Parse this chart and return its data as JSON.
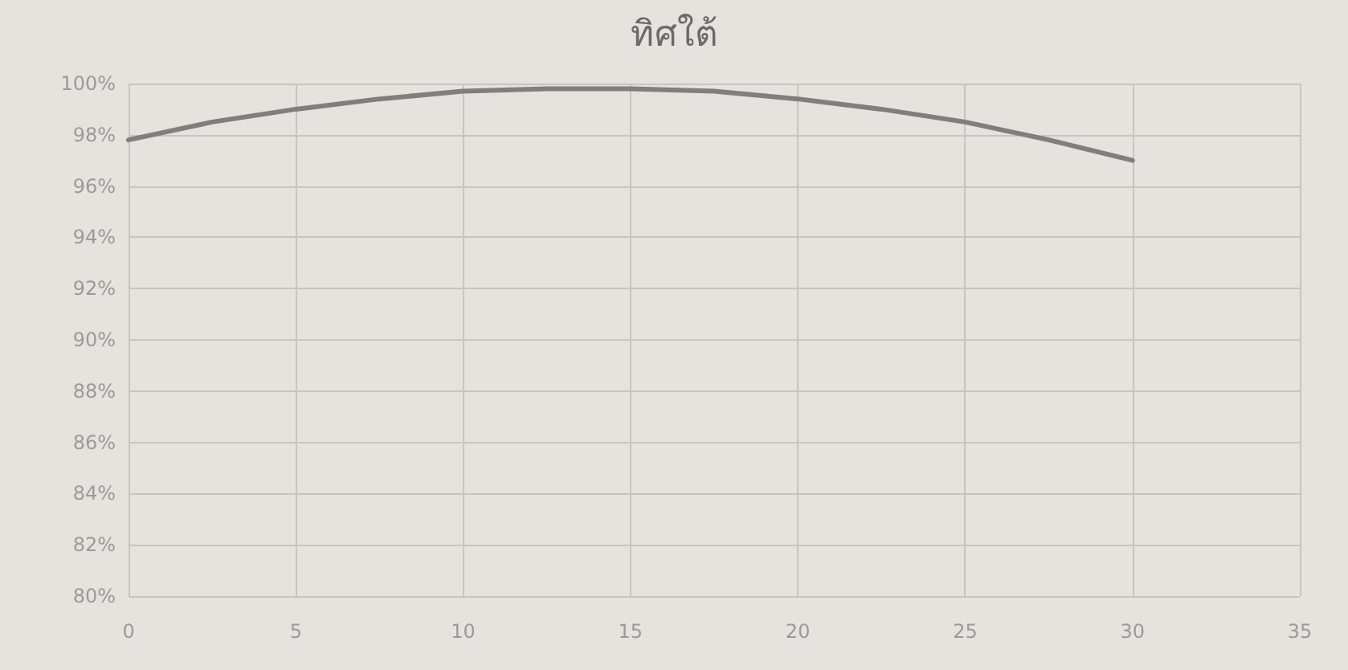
{
  "chart_data": {
    "type": "line",
    "title": "ทิศใต้",
    "x": [
      0,
      2.5,
      5,
      7.5,
      10,
      12.5,
      15,
      17.5,
      20,
      22.5,
      25,
      27.5,
      30
    ],
    "series": [
      {
        "color": "#7f7f7f",
        "values": [
          97.8,
          98.5,
          99.0,
          99.4,
          99.7,
          99.8,
          99.8,
          99.7,
          99.4,
          99.0,
          98.5,
          97.8,
          97.0
        ]
      }
    ],
    "xlim": [
      0,
      35
    ],
    "xticks": [
      0,
      5,
      10,
      15,
      20,
      25,
      30,
      35
    ],
    "ylim": [
      80,
      100
    ],
    "yticks": [
      {
        "value": 80,
        "label": "80%"
      },
      {
        "value": 82,
        "label": "82%"
      },
      {
        "value": 84,
        "label": "84%"
      },
      {
        "value": 86,
        "label": "86%"
      },
      {
        "value": 88,
        "label": "88%"
      },
      {
        "value": 90,
        "label": "90%"
      },
      {
        "value": 92,
        "label": "92%"
      },
      {
        "value": 94,
        "label": "94%"
      },
      {
        "value": 96,
        "label": "96%"
      },
      {
        "value": 98,
        "label": "98%"
      },
      {
        "value": 100,
        "label": "100%"
      }
    ],
    "grid": true,
    "marker": "none",
    "line_style": "solid"
  }
}
